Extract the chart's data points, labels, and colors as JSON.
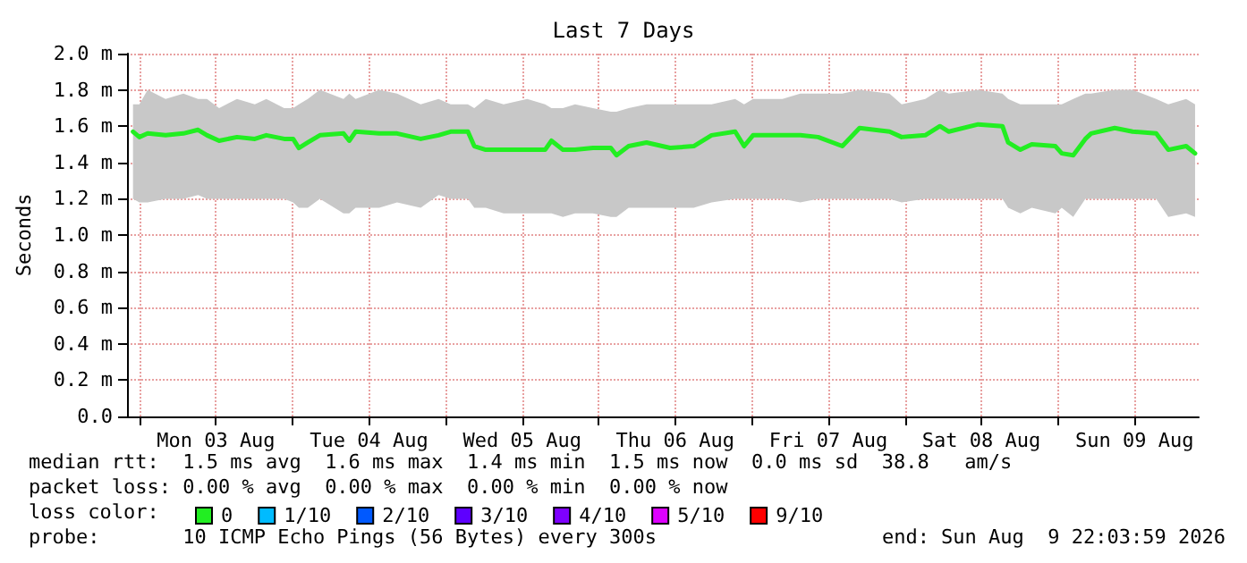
{
  "chart_data": {
    "type": "line",
    "title": "Last 7 Days",
    "ylabel": "Seconds",
    "legend_title": "loss color:",
    "x": [
      "2026-08-02T23:00",
      "2026-08-03T00:00",
      "2026-08-03T01:18",
      "2026-08-03T04:06",
      "2026-08-03T06:54",
      "2026-08-03T09:12",
      "2026-08-03T10:36",
      "2026-08-03T12:30",
      "2026-08-03T15:18",
      "2026-08-03T18:06",
      "2026-08-03T19:54",
      "2026-08-03T22:42",
      "2026-08-04T00:06",
      "2026-08-04T01:00",
      "2026-08-04T02:24",
      "2026-08-04T04:18",
      "2026-08-04T08:00",
      "2026-08-04T08:54",
      "2026-08-04T09:54",
      "2026-08-04T13:36",
      "2026-08-04T16:24",
      "2026-08-04T20:06",
      "2026-08-04T22:54",
      "2026-08-05T00:48",
      "2026-08-05T03:30",
      "2026-08-05T04:30",
      "2026-08-05T06:18",
      "2026-08-05T09:06",
      "2026-08-05T12:48",
      "2026-08-05T15:36",
      "2026-08-05T16:36",
      "2026-08-05T18:24",
      "2026-08-05T20:18",
      "2026-08-05T23:06",
      "2026-08-06T01:54",
      "2026-08-06T02:48",
      "2026-08-06T04:42",
      "2026-08-06T07:30",
      "2026-08-06T11:12",
      "2026-08-06T14:54",
      "2026-08-06T17:42",
      "2026-08-06T21:24",
      "2026-08-06T22:48",
      "2026-08-07T00:12",
      "2026-08-07T04:48",
      "2026-08-07T07:36",
      "2026-08-07T10:24",
      "2026-08-07T14:12",
      "2026-08-07T16:54",
      "2026-08-07T21:36",
      "2026-08-07T23:30",
      "2026-08-08T03:12",
      "2026-08-08T05:30",
      "2026-08-08T06:54",
      "2026-08-08T11:30",
      "2026-08-08T15:18",
      "2026-08-08T16:12",
      "2026-08-08T18:06",
      "2026-08-08T19:54",
      "2026-08-08T23:36",
      "2026-08-09T00:36",
      "2026-08-09T02:24",
      "2026-08-09T04:18",
      "2026-08-09T05:12",
      "2026-08-09T08:54",
      "2026-08-09T11:42",
      "2026-08-09T15:24",
      "2026-08-09T17:18",
      "2026-08-09T20:06",
      "2026-08-09T21:30"
    ],
    "series": [
      {
        "name": "0",
        "color": "#22ee22",
        "values": [
          1.57,
          1.54,
          1.56,
          1.55,
          1.56,
          1.58,
          1.55,
          1.52,
          1.54,
          1.53,
          1.55,
          1.53,
          1.53,
          1.48,
          1.51,
          1.55,
          1.56,
          1.52,
          1.57,
          1.56,
          1.56,
          1.53,
          1.55,
          1.57,
          1.57,
          1.49,
          1.47,
          1.47,
          1.47,
          1.47,
          1.52,
          1.47,
          1.47,
          1.48,
          1.48,
          1.44,
          1.49,
          1.51,
          1.48,
          1.49,
          1.55,
          1.57,
          1.49,
          1.55,
          1.55,
          1.55,
          1.54,
          1.49,
          1.59,
          1.57,
          1.54,
          1.55,
          1.6,
          1.57,
          1.61,
          1.6,
          1.51,
          1.47,
          1.5,
          1.49,
          1.45,
          1.44,
          1.53,
          1.56,
          1.59,
          1.57,
          1.56,
          1.47,
          1.49,
          1.45
        ],
        "lower": [
          1.2,
          1.18,
          1.18,
          1.2,
          1.2,
          1.22,
          1.2,
          1.2,
          1.2,
          1.2,
          1.2,
          1.2,
          1.18,
          1.15,
          1.15,
          1.2,
          1.12,
          1.12,
          1.15,
          1.15,
          1.18,
          1.15,
          1.22,
          1.2,
          1.2,
          1.15,
          1.15,
          1.12,
          1.12,
          1.12,
          1.12,
          1.1,
          1.12,
          1.12,
          1.1,
          1.1,
          1.15,
          1.15,
          1.15,
          1.15,
          1.18,
          1.2,
          1.2,
          1.2,
          1.2,
          1.18,
          1.2,
          1.2,
          1.2,
          1.2,
          1.18,
          1.2,
          1.2,
          1.2,
          1.2,
          1.2,
          1.15,
          1.12,
          1.15,
          1.12,
          1.15,
          1.1,
          1.2,
          1.2,
          1.2,
          1.2,
          1.2,
          1.1,
          1.12,
          1.1
        ],
        "upper": [
          1.72,
          1.72,
          1.8,
          1.75,
          1.78,
          1.75,
          1.75,
          1.7,
          1.75,
          1.72,
          1.75,
          1.7,
          1.7,
          1.72,
          1.75,
          1.8,
          1.75,
          1.78,
          1.75,
          1.8,
          1.78,
          1.72,
          1.75,
          1.72,
          1.72,
          1.7,
          1.75,
          1.72,
          1.75,
          1.72,
          1.7,
          1.7,
          1.72,
          1.7,
          1.68,
          1.68,
          1.7,
          1.72,
          1.72,
          1.72,
          1.72,
          1.75,
          1.72,
          1.75,
          1.75,
          1.78,
          1.78,
          1.78,
          1.8,
          1.78,
          1.72,
          1.75,
          1.8,
          1.78,
          1.8,
          1.78,
          1.75,
          1.72,
          1.72,
          1.72,
          1.72,
          1.75,
          1.78,
          1.78,
          1.8,
          1.8,
          1.75,
          1.72,
          1.75,
          1.72
        ]
      },
      {
        "name": "1/10",
        "color": "#00bbff",
        "values": [
          null,
          null,
          null,
          null,
          null,
          null,
          null,
          null,
          null,
          null,
          null,
          null,
          null,
          null,
          null,
          null,
          null,
          null,
          null,
          null,
          null,
          null,
          null,
          null,
          null,
          null,
          null,
          null,
          null,
          null,
          null,
          null,
          null,
          null,
          null,
          null,
          null,
          null,
          null,
          null,
          null,
          null,
          null,
          null,
          null,
          null,
          null,
          null,
          null,
          null,
          null,
          null,
          null,
          null,
          null,
          null,
          null,
          null,
          null,
          null,
          null,
          null,
          null,
          null,
          null,
          null,
          null,
          null,
          null,
          null
        ]
      },
      {
        "name": "2/10",
        "color": "#0059ff",
        "values": [
          null,
          null,
          null,
          null,
          null,
          null,
          null,
          null,
          null,
          null,
          null,
          null,
          null,
          null,
          null,
          null,
          null,
          null,
          null,
          null,
          null,
          null,
          null,
          null,
          null,
          null,
          null,
          null,
          null,
          null,
          null,
          null,
          null,
          null,
          null,
          null,
          null,
          null,
          null,
          null,
          null,
          null,
          null,
          null,
          null,
          null,
          null,
          null,
          null,
          null,
          null,
          null,
          null,
          null,
          null,
          null,
          null,
          null,
          null,
          null,
          null,
          null,
          null,
          null,
          null,
          null,
          null,
          null,
          null,
          null
        ]
      },
      {
        "name": "3/10",
        "color": "#5e00ff",
        "values": [
          null,
          null,
          null,
          null,
          null,
          null,
          null,
          null,
          null,
          null,
          null,
          null,
          null,
          null,
          null,
          null,
          null,
          null,
          null,
          null,
          null,
          null,
          null,
          null,
          null,
          null,
          null,
          null,
          null,
          null,
          null,
          null,
          null,
          null,
          null,
          null,
          null,
          null,
          null,
          null,
          null,
          null,
          null,
          null,
          null,
          null,
          null,
          null,
          null,
          null,
          null,
          null,
          null,
          null,
          null,
          null,
          null,
          null,
          null,
          null,
          null,
          null,
          null,
          null,
          null,
          null,
          null,
          null,
          null,
          null
        ]
      },
      {
        "name": "4/10",
        "color": "#7e00ff",
        "values": [
          null,
          null,
          null,
          null,
          null,
          null,
          null,
          null,
          null,
          null,
          null,
          null,
          null,
          null,
          null,
          null,
          null,
          null,
          null,
          null,
          null,
          null,
          null,
          null,
          null,
          null,
          null,
          null,
          null,
          null,
          null,
          null,
          null,
          null,
          null,
          null,
          null,
          null,
          null,
          null,
          null,
          null,
          null,
          null,
          null,
          null,
          null,
          null,
          null,
          null,
          null,
          null,
          null,
          null,
          null,
          null,
          null,
          null,
          null,
          null,
          null,
          null,
          null,
          null,
          null,
          null,
          null,
          null,
          null,
          null
        ]
      },
      {
        "name": "5/10",
        "color": "#dd00ff",
        "values": [
          null,
          null,
          null,
          null,
          null,
          null,
          null,
          null,
          null,
          null,
          null,
          null,
          null,
          null,
          null,
          null,
          null,
          null,
          null,
          null,
          null,
          null,
          null,
          null,
          null,
          null,
          null,
          null,
          null,
          null,
          null,
          null,
          null,
          null,
          null,
          null,
          null,
          null,
          null,
          null,
          null,
          null,
          null,
          null,
          null,
          null,
          null,
          null,
          null,
          null,
          null,
          null,
          null,
          null,
          null,
          null,
          null,
          null,
          null,
          null,
          null,
          null,
          null,
          null,
          null,
          null,
          null,
          null,
          null,
          null
        ]
      },
      {
        "name": "9/10",
        "color": "#ff0000",
        "values": [
          null,
          null,
          null,
          null,
          null,
          null,
          null,
          null,
          null,
          null,
          null,
          null,
          null,
          null,
          null,
          null,
          null,
          null,
          null,
          null,
          null,
          null,
          null,
          null,
          null,
          null,
          null,
          null,
          null,
          null,
          null,
          null,
          null,
          null,
          null,
          null,
          null,
          null,
          null,
          null,
          null,
          null,
          null,
          null,
          null,
          null,
          null,
          null,
          null,
          null,
          null,
          null,
          null,
          null,
          null,
          null,
          null,
          null,
          null,
          null,
          null,
          null,
          null,
          null,
          null,
          null,
          null,
          null,
          null,
          null
        ]
      }
    ],
    "xlim": [
      "2026-08-02T22:04",
      "2026-08-09T22:04"
    ],
    "xticks": [
      {
        "value": "2026-08-03T00:00",
        "label": null
      },
      {
        "value": "2026-08-03T12:00",
        "label": "Mon 03 Aug"
      },
      {
        "value": "2026-08-04T00:00",
        "label": null
      },
      {
        "value": "2026-08-04T12:00",
        "label": "Tue 04 Aug"
      },
      {
        "value": "2026-08-05T00:00",
        "label": null
      },
      {
        "value": "2026-08-05T12:00",
        "label": "Wed 05 Aug"
      },
      {
        "value": "2026-08-06T00:00",
        "label": null
      },
      {
        "value": "2026-08-06T12:00",
        "label": "Thu 06 Aug"
      },
      {
        "value": "2026-08-07T00:00",
        "label": null
      },
      {
        "value": "2026-08-07T12:00",
        "label": "Fri 07 Aug"
      },
      {
        "value": "2026-08-08T00:00",
        "label": null
      },
      {
        "value": "2026-08-08T12:00",
        "label": "Sat 08 Aug"
      },
      {
        "value": "2026-08-09T00:00",
        "label": null
      },
      {
        "value": "2026-08-09T12:00",
        "label": "Sun 09 Aug"
      }
    ],
    "ylim": [
      0,
      2.0
    ],
    "yticks": [
      {
        "value": 0,
        "label": "0.0"
      },
      {
        "value": 0.2,
        "label": "0.2 m"
      },
      {
        "value": 0.4,
        "label": "0.4 m"
      },
      {
        "value": 0.6,
        "label": "0.6 m"
      },
      {
        "value": 0.8,
        "label": "0.8 m"
      },
      {
        "value": 1.0,
        "label": "1.0 m"
      },
      {
        "value": 1.2,
        "label": "1.2 m"
      },
      {
        "value": 1.4,
        "label": "1.4 m"
      },
      {
        "value": 1.6,
        "label": "1.6 m"
      },
      {
        "value": 1.8,
        "label": "1.8 m"
      },
      {
        "value": 2.0,
        "label": "2.0 m"
      }
    ],
    "grid": true,
    "legend": "bottom",
    "marker": "none",
    "line_style": "solid",
    "annotations": [
      "median rtt:  1.5 ms avg  1.6 ms max  1.4 ms min  1.5 ms now  0.0 ms sd  38.8   am/s",
      "packet loss: 0.00 % avg  0.00 % max  0.00 % min  0.00 % now",
      "probe:       10 ICMP Echo Pings (56 Bytes) every 300s",
      "end: Sun Aug  9 22:03:59 2026"
    ]
  }
}
